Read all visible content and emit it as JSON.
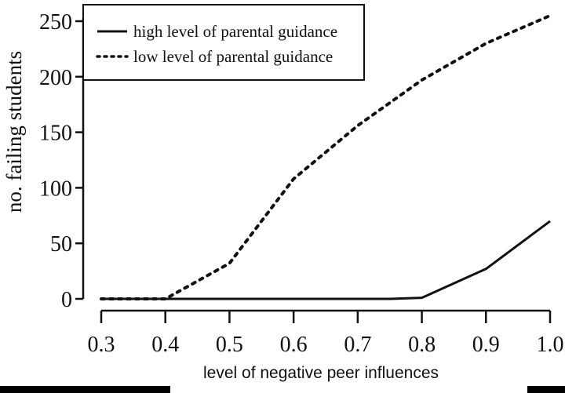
{
  "chart_data": {
    "type": "line",
    "title": "",
    "xlabel": "level of negative peer influences",
    "ylabel": "no. failing students",
    "xlim": [
      0.3,
      1.0
    ],
    "ylim": [
      0,
      250
    ],
    "xticks": [
      "0.3",
      "0.4",
      "0.5",
      "0.6",
      "0.7",
      "0.8",
      "0.9",
      "1.0"
    ],
    "yticks": [
      "0",
      "50",
      "100",
      "150",
      "200",
      "250"
    ],
    "grid": false,
    "legend_position": "top-left",
    "series": [
      {
        "name": "high level of parental guidance",
        "style": "solid",
        "x": [
          0.3,
          0.4,
          0.5,
          0.6,
          0.7,
          0.75,
          0.8,
          0.9,
          1.0
        ],
        "y": [
          0,
          0,
          0,
          0,
          0,
          0,
          1,
          27,
          70
        ]
      },
      {
        "name": "low level of parental guidance",
        "style": "dotted",
        "x": [
          0.3,
          0.4,
          0.5,
          0.6,
          0.7,
          0.8,
          0.9,
          1.0
        ],
        "y": [
          0,
          0,
          32,
          108,
          156,
          197,
          230,
          255
        ]
      }
    ]
  }
}
